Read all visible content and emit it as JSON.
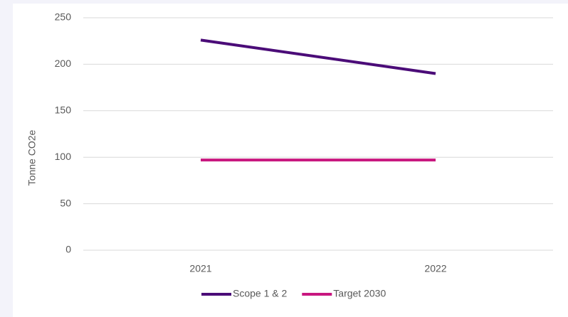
{
  "chart_data": {
    "type": "line",
    "y_label": "Tonne CO2e",
    "categories": [
      "2021",
      "2022"
    ],
    "series": [
      {
        "name": "Scope 1 & 2",
        "color": "#4b0c78",
        "values": [
          226,
          190
        ]
      },
      {
        "name": "Target 2030",
        "color": "#c8177f",
        "values": [
          97,
          97
        ]
      }
    ],
    "ylim": [
      0,
      250
    ],
    "yticks": [
      0,
      50,
      100,
      150,
      200,
      250
    ],
    "grid": true,
    "legend": "bottom"
  }
}
